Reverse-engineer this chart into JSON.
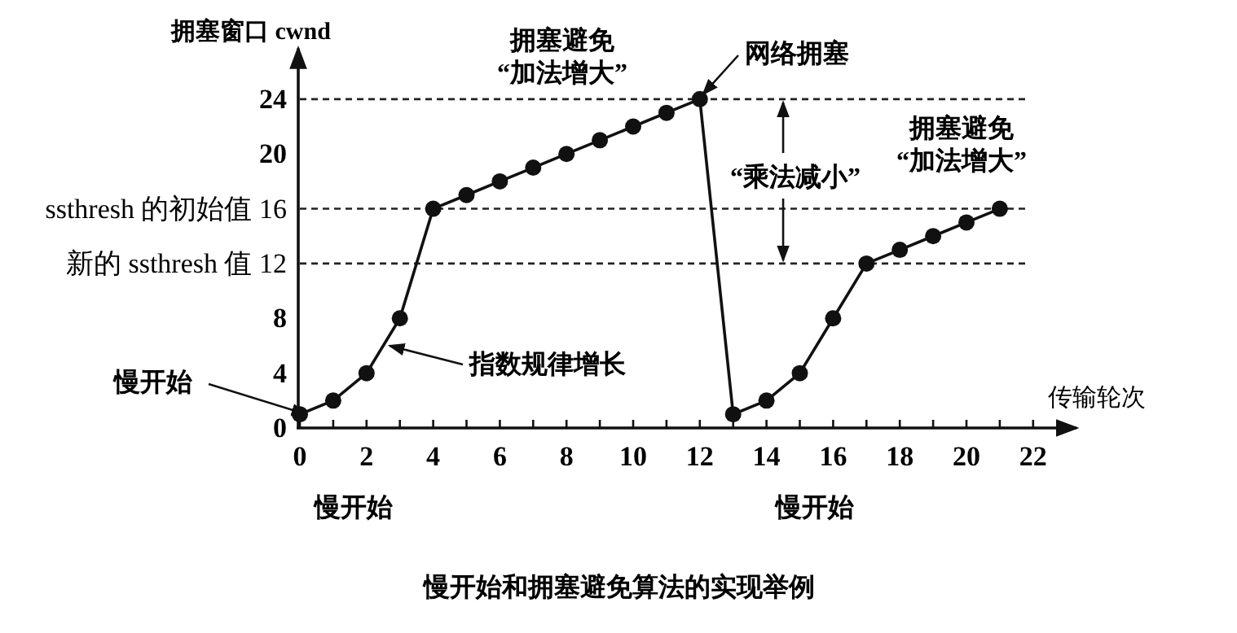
{
  "chart_data": {
    "type": "line",
    "title": "慢开始和拥塞避免算法的实现举例",
    "xlabel": "传输轮次",
    "ylabel": "拥塞窗口 cwnd",
    "x": [
      0,
      1,
      2,
      3,
      4,
      5,
      6,
      7,
      8,
      9,
      10,
      11,
      12,
      13,
      14,
      15,
      16,
      17,
      18,
      19,
      20,
      21
    ],
    "series": [
      {
        "color": "#111111",
        "values": [
          1,
          2,
          4,
          8,
          16,
          17,
          18,
          19,
          20,
          21,
          22,
          23,
          24,
          1,
          2,
          4,
          8,
          12,
          13,
          14,
          15,
          16
        ]
      }
    ],
    "xlim": [
      0,
      23.3
    ],
    "ylim": [
      0,
      27.7
    ],
    "xticks": [
      0,
      {
        "value": 1,
        "label": null
      },
      2,
      {
        "value": 3,
        "label": null
      },
      4,
      {
        "value": 5,
        "label": null
      },
      6,
      {
        "value": 7,
        "label": null
      },
      8,
      {
        "value": 9,
        "label": null
      },
      10,
      {
        "value": 11,
        "label": null
      },
      12,
      {
        "value": 13,
        "label": null
      },
      14,
      {
        "value": 15,
        "label": null
      },
      16,
      {
        "value": 17,
        "label": null
      },
      18,
      {
        "value": 19,
        "label": null
      },
      20,
      {
        "value": 21,
        "label": null
      },
      22
    ],
    "yticks": [
      0,
      4,
      8,
      {
        "value": 12,
        "label": "新的 ssthresh 值 12"
      },
      {
        "value": 16,
        "label": "ssthresh 的初始值 16"
      },
      20,
      24
    ],
    "ref_lines": [
      {
        "axis": "y",
        "value": 24,
        "line_style": "dashed"
      },
      {
        "axis": "y",
        "value": 16,
        "line_style": "dashed"
      },
      {
        "axis": "y",
        "value": 12,
        "line_style": "dashed"
      }
    ],
    "annotations": [
      "拥塞避免\n“加法增大”",
      {
        "text": "网络拥塞",
        "x": 12,
        "y": 24
      },
      {
        "text": "“乘法减小”",
        "x": 14.5,
        "y": 24
      },
      "拥塞避免\n“加法增大”",
      {
        "text": "指数规律增长",
        "x": 2.5,
        "y": 6
      },
      {
        "text": "慢开始",
        "x": 0,
        "y": 1
      },
      "慢开始",
      "慢开始"
    ],
    "marker": "circle",
    "line_style": "solid",
    "grid": false
  }
}
